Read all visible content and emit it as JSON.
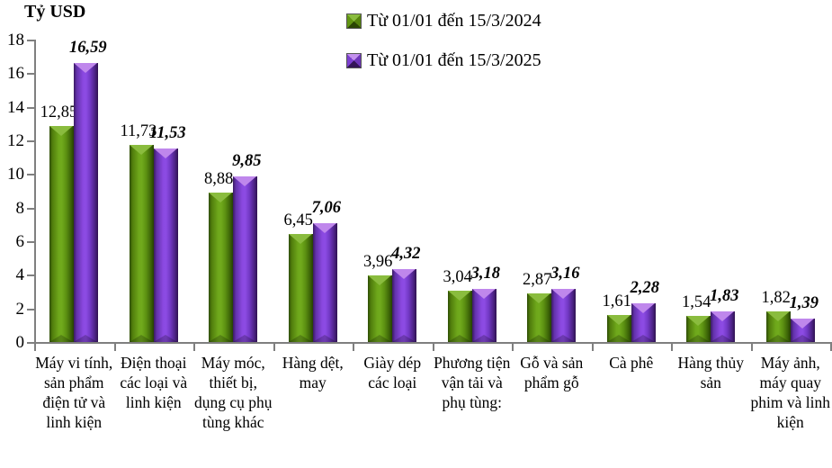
{
  "chart_data": {
    "type": "bar",
    "title": "Tỷ USD",
    "ylabel": "Tỷ USD",
    "xlabel": "",
    "ylim": [
      0,
      18
    ],
    "yticks": [
      0,
      2,
      4,
      6,
      8,
      10,
      12,
      14,
      16,
      18
    ],
    "grid": false,
    "legend_position": "top-center",
    "categories": [
      "Máy vi tính, sản phẩm điện tử và linh kiện",
      "Điện thoại các loại và linh kiện",
      "Máy móc, thiết bị, dụng cụ phụ tùng khác",
      "Hàng dệt, may",
      "Giày dép các loại",
      "Phương tiện vận tải và phụ tùng:",
      "Gỗ và sản phẩm gỗ",
      "Cà phê",
      "Hàng thủy sản",
      "Máy ảnh, máy quay phim và linh kiện"
    ],
    "series": [
      {
        "name": "Từ 01/01 đến 15/3/2024",
        "color": "#6ea71b",
        "values": [
          12.85,
          11.73,
          8.88,
          6.45,
          3.96,
          3.04,
          2.87,
          1.61,
          1.54,
          1.82
        ],
        "labels": [
          "12,85",
          "11,73",
          "8,88",
          "6,45",
          "3,96",
          "3,04",
          "2,87",
          "1,61",
          "1,54",
          "1,82"
        ]
      },
      {
        "name": "Từ 01/01 đến 15/3/2025",
        "color": "#8a48e0",
        "values": [
          16.59,
          11.53,
          9.85,
          7.06,
          4.32,
          3.18,
          3.16,
          2.28,
          1.83,
          1.39
        ],
        "labels": [
          "16,59",
          "11,53",
          "9,85",
          "7,06",
          "4,32",
          "3,18",
          "3,16",
          "2,28",
          "1,83",
          "1,39"
        ]
      }
    ]
  }
}
